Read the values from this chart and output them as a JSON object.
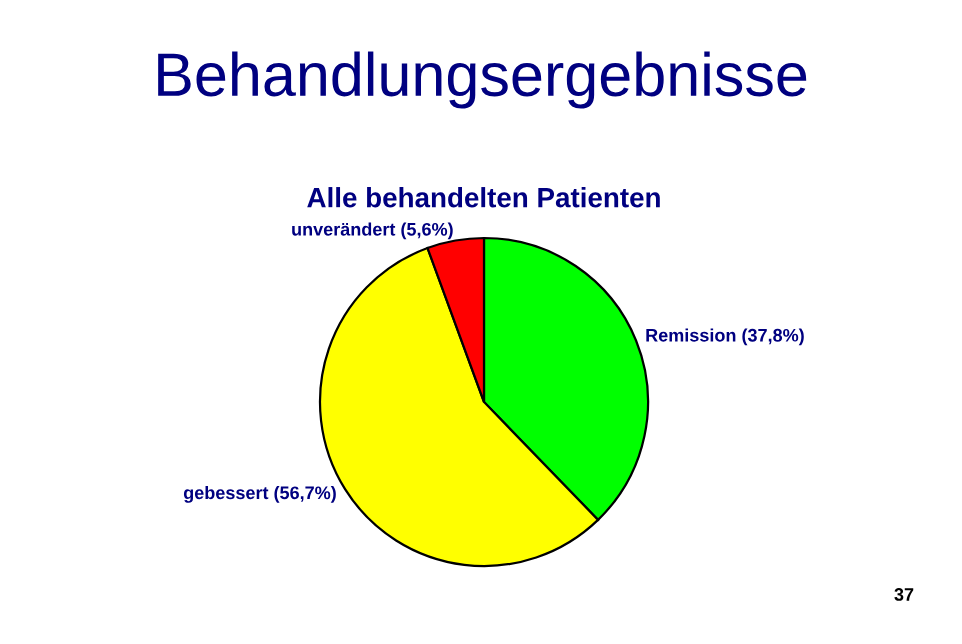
{
  "chart_data": {
    "type": "pie",
    "title": "Behandlungsergebnisse",
    "subtitle": "Alle behandelten Patienten",
    "categories": [
      "Remission (37,8%)",
      "gebessert (56,7%)",
      "unverändert (5,6%)"
    ],
    "values": [
      37.8,
      56.7,
      5.6
    ],
    "colors": [
      "#00ff00",
      "#ffff00",
      "#ff0000"
    ],
    "annotations": [
      "37"
    ]
  }
}
